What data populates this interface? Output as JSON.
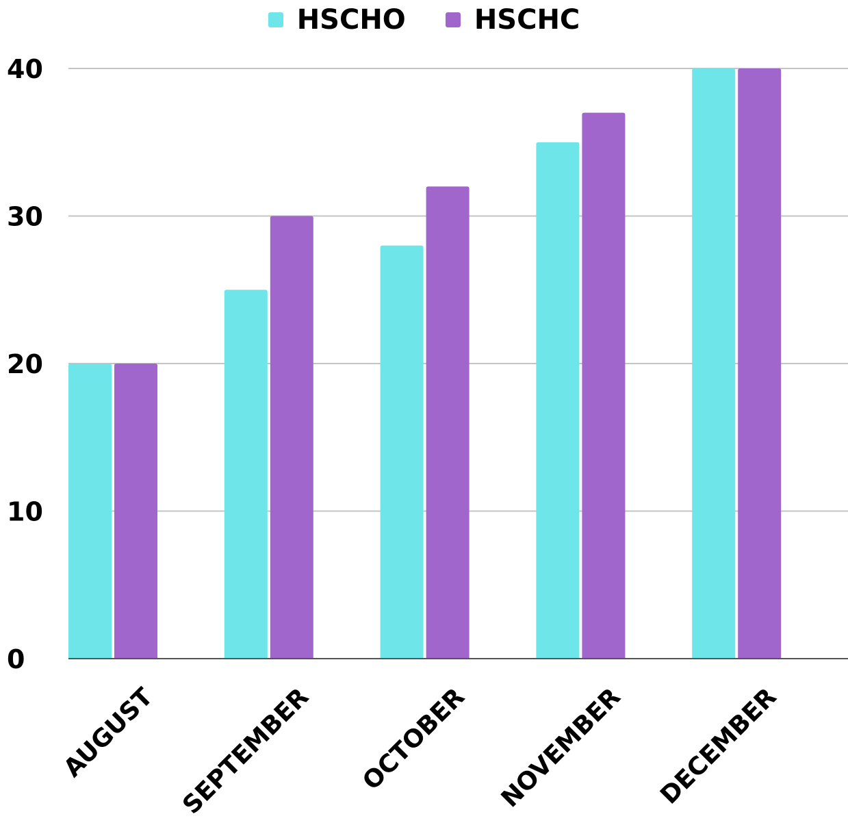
{
  "chart_data": {
    "type": "bar",
    "categories": [
      "AUGUST",
      "SEPTEMBER",
      "OCTOBER",
      "NOVEMBER",
      "DECEMBER"
    ],
    "series": [
      {
        "name": "HSCHO",
        "color": "#6ee5e8",
        "values": [
          20,
          25,
          28,
          35,
          40
        ]
      },
      {
        "name": "HSCHC",
        "color": "#a066cb",
        "values": [
          20,
          30,
          32,
          37,
          40
        ]
      }
    ],
    "yticks": [
      "0",
      "10",
      "20",
      "30",
      "40"
    ],
    "ylim": [
      0,
      40
    ],
    "grid": true,
    "legend": "top-center",
    "title": "",
    "xlabel": "",
    "ylabel": ""
  }
}
